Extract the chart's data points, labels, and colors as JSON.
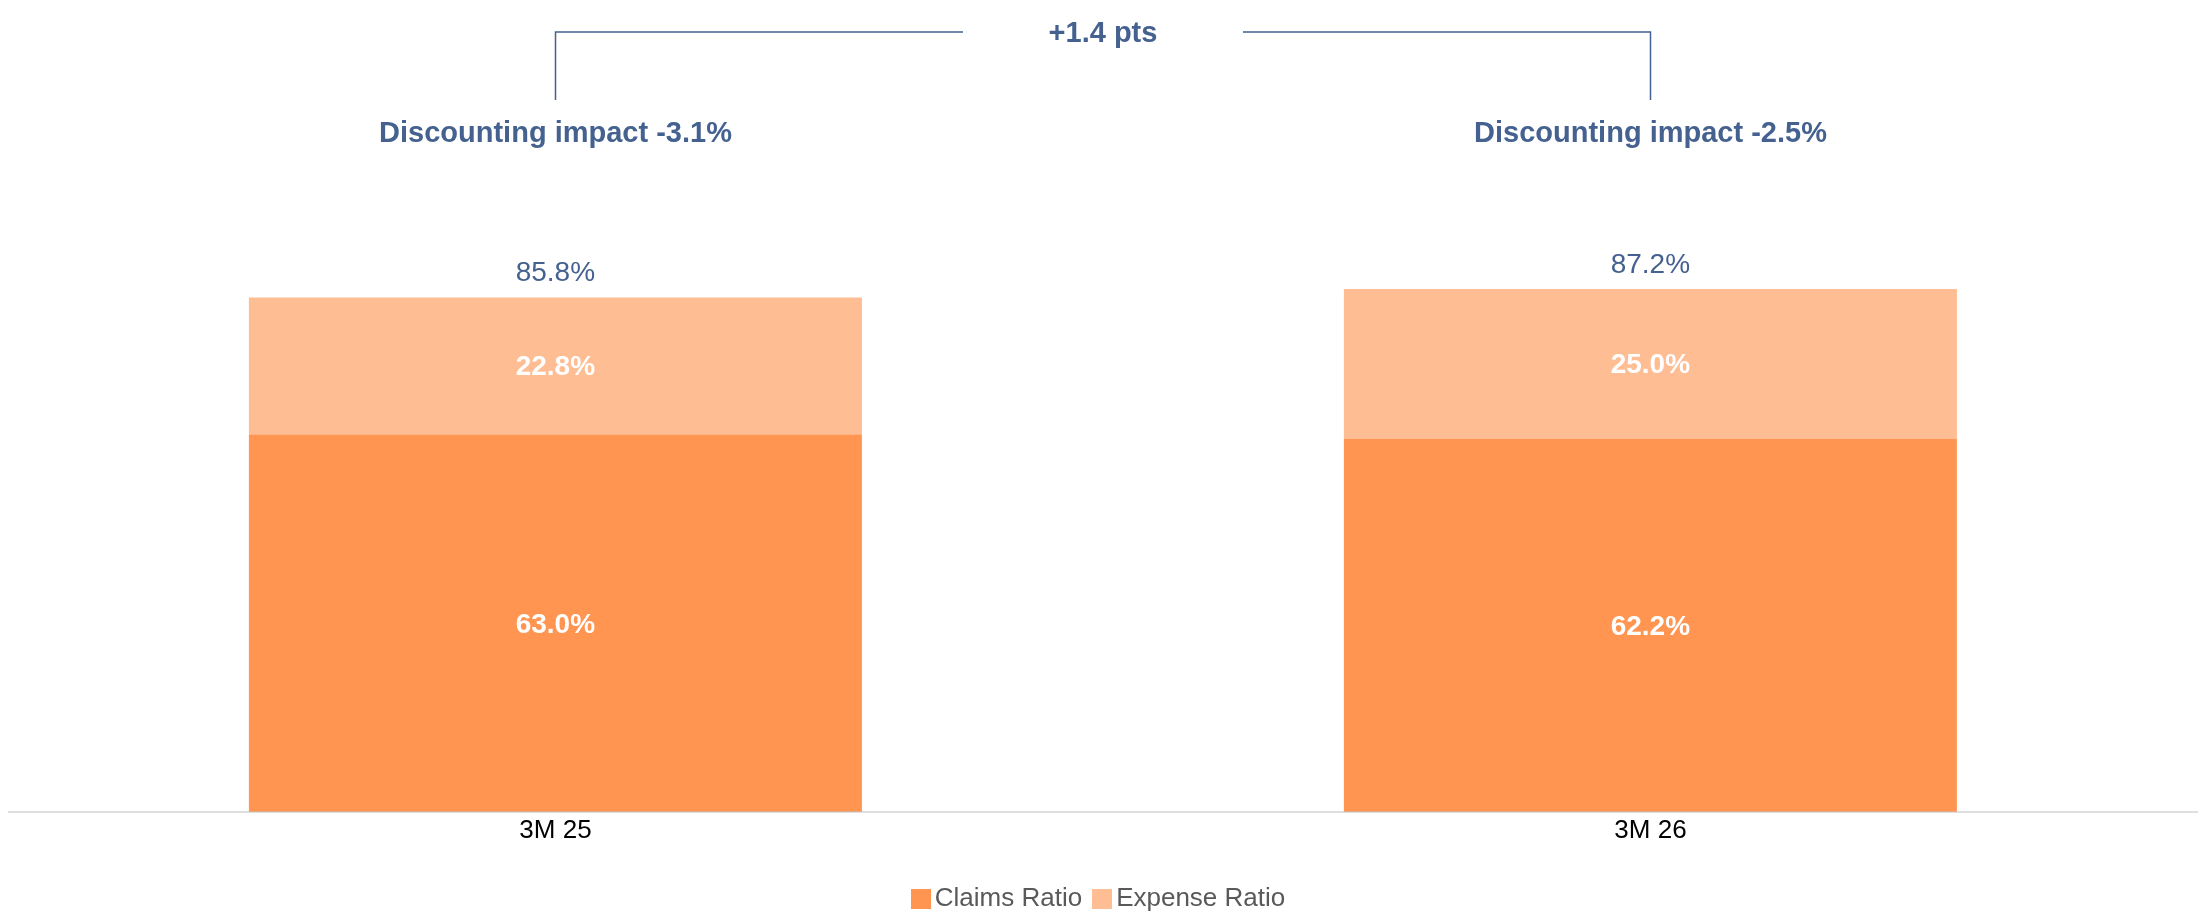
{
  "chart_data": {
    "type": "bar",
    "stacked": true,
    "categories": [
      "3M 25",
      "3M 26"
    ],
    "series": [
      {
        "name": "Claims Ratio",
        "color": "#ff9550",
        "values": [
          63.0,
          62.2
        ],
        "value_labels": [
          "63.0%",
          "62.2%"
        ]
      },
      {
        "name": "Expense Ratio",
        "color": "#ffbd94",
        "values": [
          22.8,
          25.0
        ],
        "value_labels": [
          "22.8%",
          "25.0%"
        ]
      }
    ],
    "totals": [
      "85.8%",
      "87.2%"
    ],
    "annotations": [
      "Discounting impact -3.1%",
      "Discounting impact -2.5%",
      "+1.4 pts"
    ],
    "legend": "bottom",
    "grid": false,
    "tick_labels": "x"
  }
}
